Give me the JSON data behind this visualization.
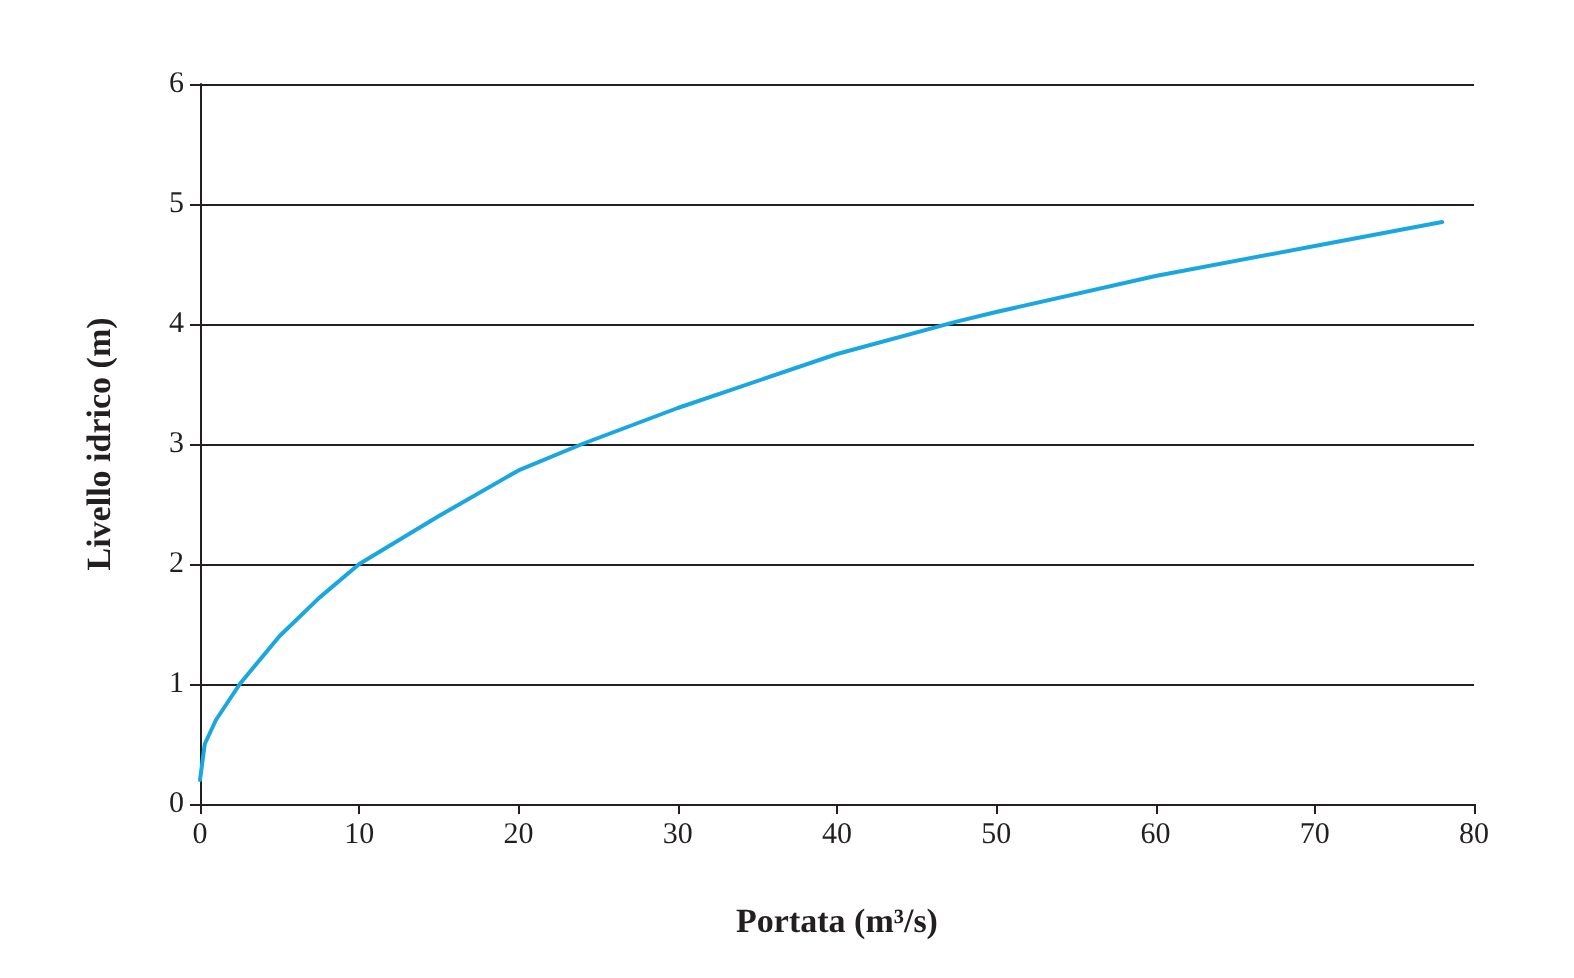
{
  "chart_data": {
    "type": "line",
    "xlabel": "Portata (m³/s)",
    "ylabel": "Livello idrico (m)",
    "x": [
      0,
      0.3,
      1,
      2.5,
      5,
      7.5,
      10,
      15,
      20,
      24,
      30,
      40,
      47.5,
      50,
      60,
      70,
      78
    ],
    "series": [
      {
        "color": "#1aa7e0",
        "values": [
          0.2,
          0.5,
          0.7,
          1,
          1.4,
          1.72,
          2,
          2.4,
          2.78,
          3,
          3.3,
          3.75,
          4.02,
          4.1,
          4.4,
          4.65,
          4.85
        ]
      }
    ],
    "xlim": [
      0,
      80
    ],
    "xticks": [
      0,
      10,
      20,
      30,
      40,
      50,
      60,
      70,
      80
    ],
    "ylim": [
      0,
      6
    ],
    "yticks": [
      0,
      1,
      2,
      3,
      4,
      5,
      6
    ],
    "grid": "y",
    "marker": "none",
    "line_style": "solid"
  }
}
